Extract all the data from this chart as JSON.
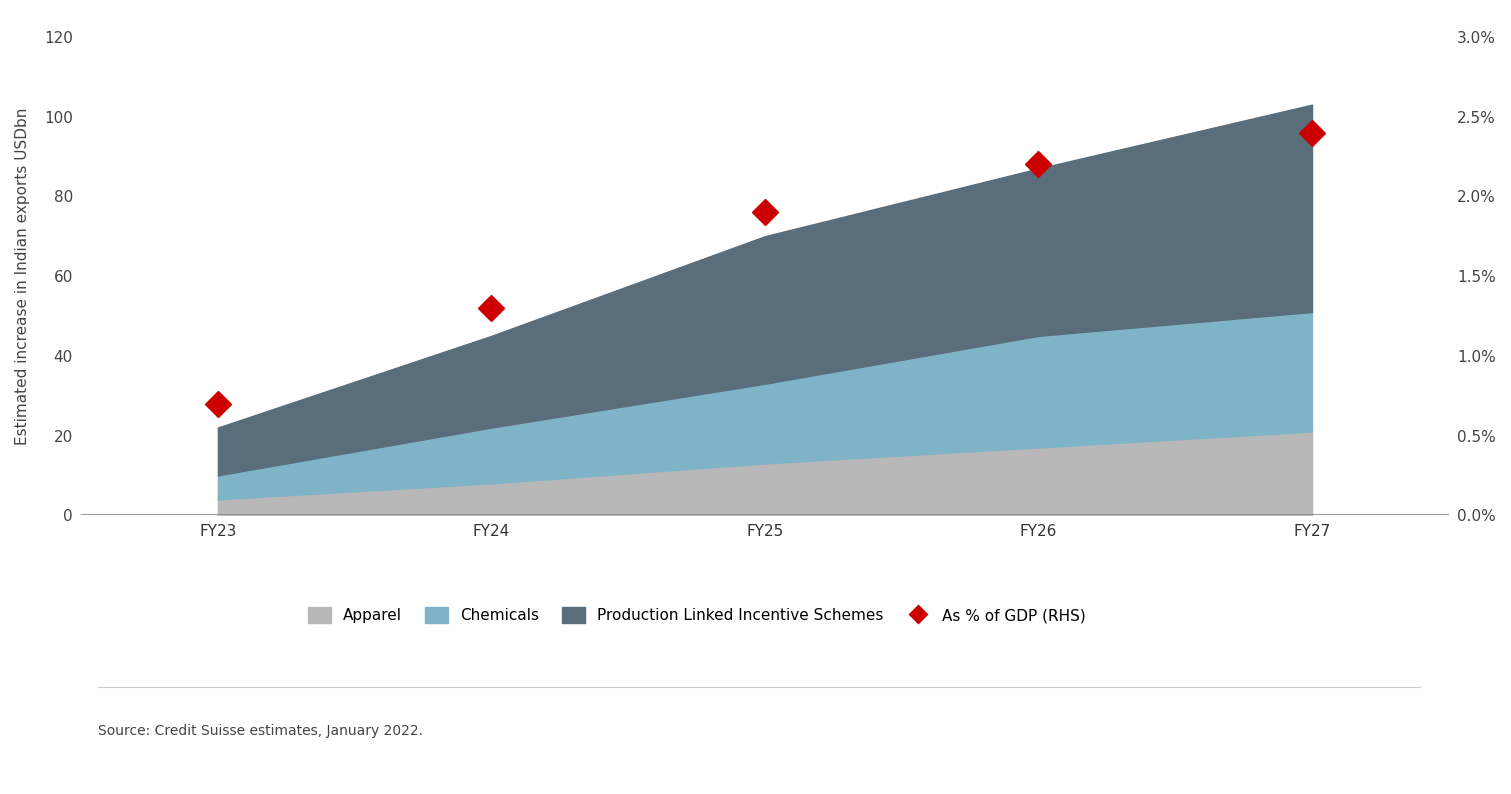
{
  "categories": [
    "FY23",
    "FY24",
    "FY25",
    "FY26",
    "FY27"
  ],
  "apparel": [
    4,
    8,
    13,
    17,
    21
  ],
  "chemicals": [
    6,
    14,
    20,
    28,
    30
  ],
  "pli": [
    12,
    23,
    37,
    42,
    52
  ],
  "gdp_pct": [
    0.7,
    1.3,
    1.9,
    2.2,
    2.4
  ],
  "apparel_color": "#b8b8b8",
  "chemicals_color": "#7fb3c8",
  "pli_color": "#596e7a",
  "gdp_color": "#cc0000",
  "ylim_left": [
    0,
    120
  ],
  "ylim_right": [
    0,
    3.0
  ],
  "ylabel_left": "Estimated increase in Indian exports USDbn",
  "yticks_left": [
    0,
    20,
    40,
    60,
    80,
    100,
    120
  ],
  "yticks_right": [
    0.0,
    0.5,
    1.0,
    1.5,
    2.0,
    2.5,
    3.0
  ],
  "ytick_labels_right": [
    "0.0%",
    "0.5%",
    "1.0%",
    "1.5%",
    "2.0%",
    "2.5%",
    "3.0%"
  ],
  "legend_labels": [
    "Apparel",
    "Chemicals",
    "Production Linked Incentive Schemes",
    "As % of GDP (RHS)"
  ],
  "source_text": "Source: Credit Suisse estimates, January 2022.",
  "background_color": "#ffffff",
  "axis_fontsize": 11,
  "tick_fontsize": 11,
  "legend_fontsize": 11,
  "source_fontsize": 10
}
